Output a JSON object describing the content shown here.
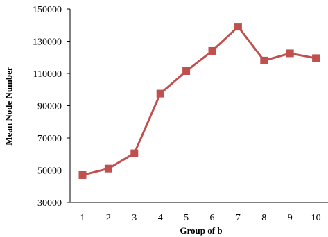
{
  "chart_data": {
    "type": "line",
    "title": "",
    "xlabel": "Group of b",
    "ylabel": "Mean Node Number",
    "x": [
      1,
      2,
      3,
      4,
      5,
      6,
      7,
      8,
      9,
      10
    ],
    "x_tick_labels": [
      "1",
      "2",
      "3",
      "4",
      "5",
      "6",
      "7",
      "8",
      "9",
      "10"
    ],
    "series": [
      {
        "values": [
          47000,
          51000,
          60500,
          97500,
          111500,
          124000,
          139000,
          118000,
          122500,
          119500
        ],
        "color": "#c0504d",
        "marker": "square"
      }
    ],
    "ylim": [
      30000,
      150000
    ],
    "y_ticks": [
      30000,
      50000,
      70000,
      90000,
      110000,
      130000,
      150000
    ],
    "y_tick_labels": [
      "30000",
      "50000",
      "70000",
      "90000",
      "110000",
      "130000",
      "150000"
    ],
    "grid": false,
    "legend": "none",
    "axis_color": "#000000"
  }
}
